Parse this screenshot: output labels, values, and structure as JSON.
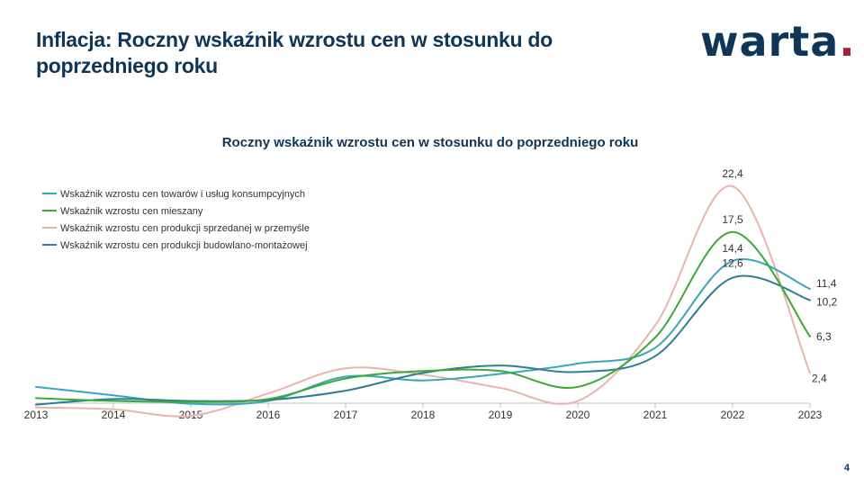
{
  "slide": {
    "title": "Inflacja: Roczny wskaźnik wzrostu cen w stosunku do poprzedniego roku",
    "logo_text": "warta",
    "logo_dot": ".",
    "page_number": "4"
  },
  "colors": {
    "brand_navy": "#0f3557",
    "brand_red": "#a3213f"
  },
  "chart_data": {
    "type": "line",
    "title": "Roczny wskaźnik wzrostu cen w stosunku do poprzedniego roku",
    "xlabel": "",
    "ylabel": "",
    "x": [
      2013,
      2014,
      2015,
      2016,
      2017,
      2018,
      2019,
      2020,
      2021,
      2022,
      2023
    ],
    "ylim": [
      -2,
      25
    ],
    "grid": false,
    "legend_position": "top-left",
    "smooth": true,
    "series": [
      {
        "name": "Wskaźnik wzrostu cen towarów i usług konsumpcyjnych",
        "color": "#3aa5b8",
        "values": [
          0.9,
          0.0,
          -0.9,
          -0.6,
          2.0,
          1.6,
          2.3,
          3.4,
          5.1,
          14.4,
          11.4
        ],
        "labels": {
          "9": "14,4",
          "10": "11,4"
        }
      },
      {
        "name": "Wskaźnik wzrostu cen mieszany",
        "color": "#3aaa35",
        "values": [
          -0.3,
          -0.6,
          -0.7,
          -0.4,
          1.8,
          2.6,
          2.6,
          0.9,
          6.2,
          17.5,
          6.3
        ],
        "labels": {
          "9": "17,5",
          "10": "6,3"
        }
      },
      {
        "name": "Wskaźnik wzrostu cen produkcji sprzedanej w przemyśle",
        "color": "#e8b4ae",
        "values": [
          -1.3,
          -1.5,
          -2.2,
          0.2,
          2.9,
          2.2,
          0.8,
          -0.6,
          7.5,
          22.4,
          2.4
        ],
        "labels": {
          "9": "22,4",
          "10": "2,4"
        }
      },
      {
        "name": "Wskaźnik wzrostu cen produkcji budowlano-montażowej",
        "color": "#2e7d96",
        "values": [
          -1.0,
          -0.4,
          -0.6,
          -0.5,
          0.5,
          2.4,
          3.2,
          2.5,
          4.2,
          12.6,
          10.2
        ],
        "labels": {
          "9": "12,6",
          "10": "10,2"
        }
      }
    ]
  }
}
